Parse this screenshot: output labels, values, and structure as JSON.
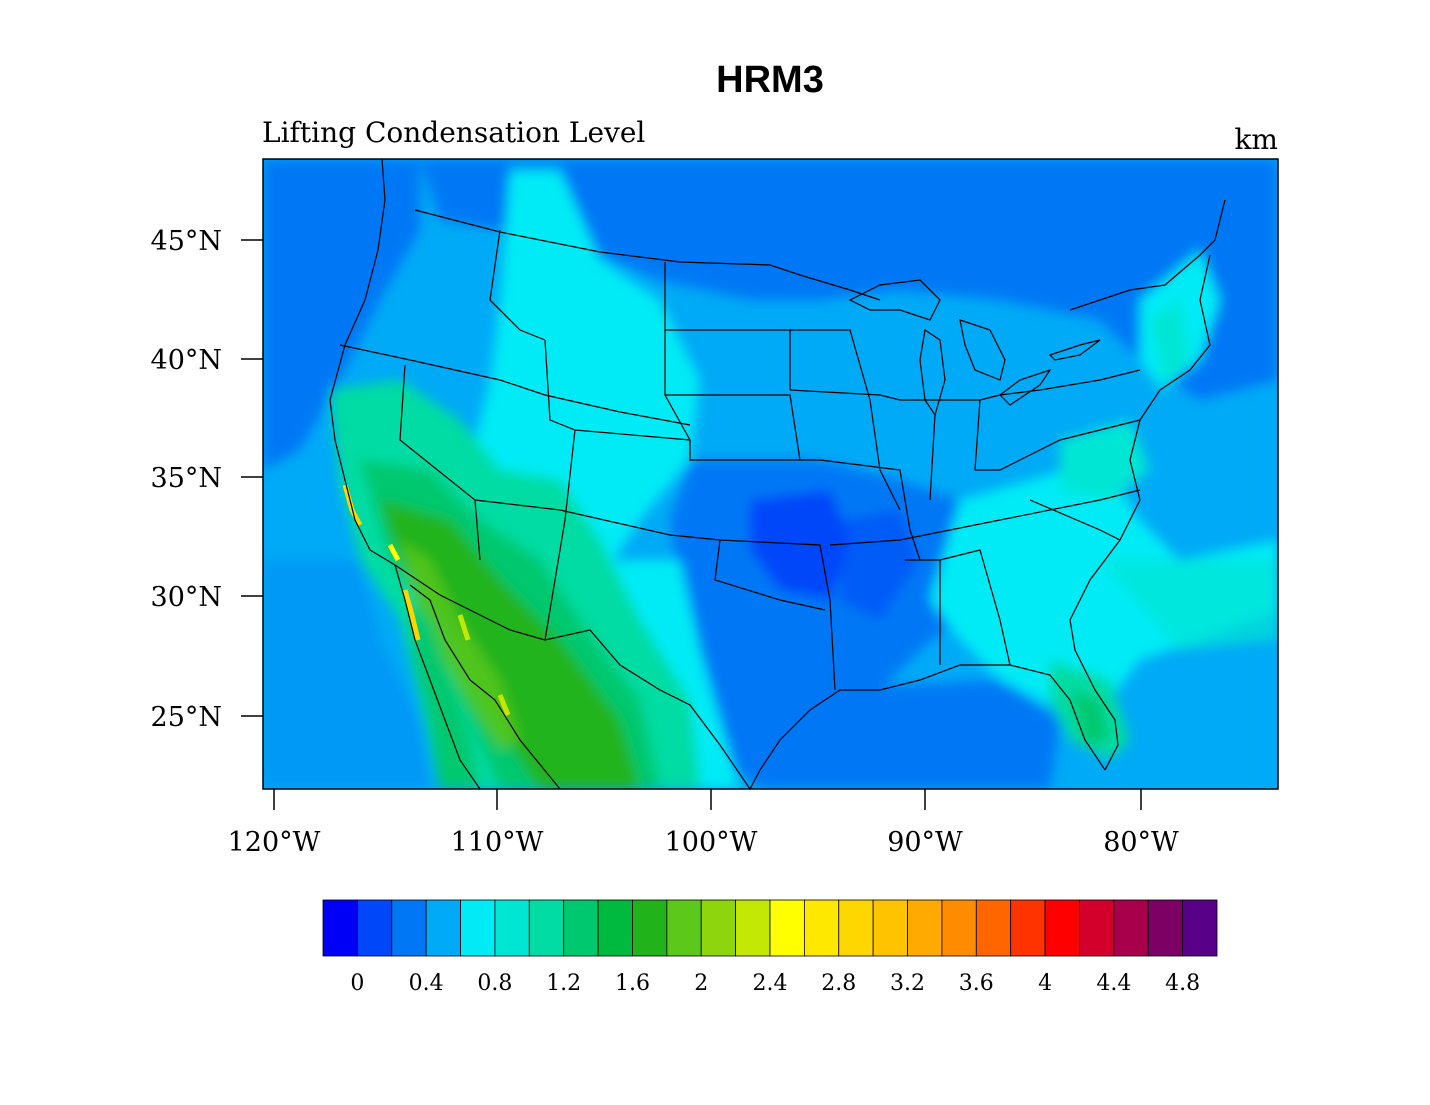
{
  "title": "HRM3",
  "subtitle_left": "Lifting Condensation Level",
  "subtitle_right": "km",
  "lat_ticks": [
    "45°N",
    "40°N",
    "35°N",
    "30°N",
    "25°N"
  ],
  "lon_ticks": [
    "120°W",
    "110°W",
    "100°W",
    "90°W",
    "80°W"
  ],
  "colorbar": {
    "colors": [
      "#0000f6",
      "#0047f9",
      "#0078f5",
      "#00aaf6",
      "#00ebf5",
      "#00e6d4",
      "#00dca3",
      "#00c86e",
      "#00b93f",
      "#20b41a",
      "#5cc81a",
      "#8ed50e",
      "#c3e804",
      "#ffff00",
      "#ffe800",
      "#ffd700",
      "#ffc300",
      "#ffaa00",
      "#ff8c00",
      "#ff6600",
      "#ff3300",
      "#ff0000",
      "#d2002a",
      "#a8004a",
      "#7d0064",
      "#580088"
    ],
    "tick_labels": [
      "0",
      "0.4",
      "0.8",
      "1.2",
      "1.6",
      "2",
      "2.4",
      "2.8",
      "3.2",
      "3.6",
      "4",
      "4.4",
      "4.8"
    ]
  }
}
